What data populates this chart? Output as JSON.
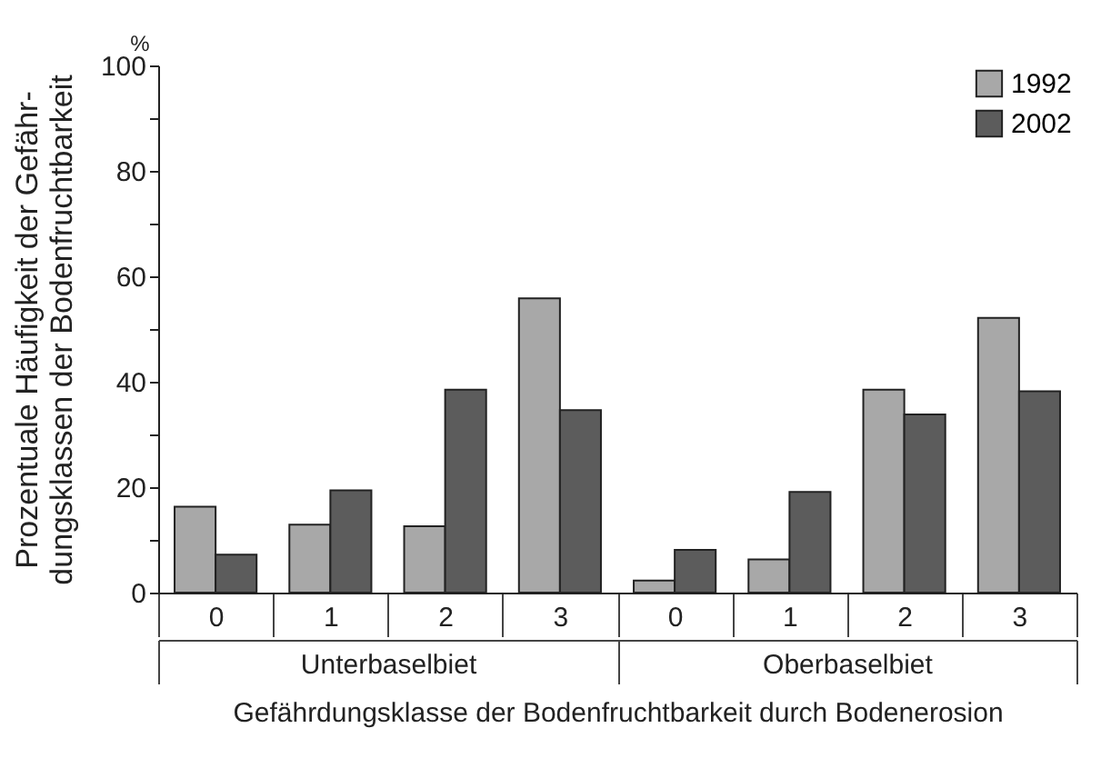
{
  "chart_data": {
    "type": "bar",
    "ylabel": "Prozentuale Häufigkeit der Gefähr-\ndungsklassen der Bodenfruchtbarkeit",
    "xlabel": "Gefährdungsklasse der Bodenfruchtbarkeit durch Bodenerosion",
    "categories": [
      "0",
      "1",
      "2",
      "3",
      "0",
      "1",
      "2",
      "3"
    ],
    "series": [
      {
        "name": "1992",
        "color": "#a8a8a8",
        "values": [
          16.3,
          12.9,
          12.6,
          55.8,
          2.3,
          6.3,
          38.5,
          52.1
        ]
      },
      {
        "name": "2002",
        "color": "#5c5c5c",
        "values": [
          7.2,
          19.4,
          38.5,
          34.6,
          8.1,
          19.1,
          33.8,
          38.2
        ]
      }
    ],
    "ylim": [
      0,
      100
    ],
    "yticks": [
      0,
      {
        "value": 10,
        "label": null
      },
      20,
      {
        "value": 30,
        "label": null
      },
      40,
      {
        "value": 50,
        "label": null
      },
      60,
      {
        "value": 70,
        "label": null
      },
      80,
      {
        "value": 90,
        "label": null
      },
      100
    ],
    "legend": "top right",
    "grid": false,
    "annotations": [
      "%",
      "Unterbaselbiet",
      "Oberbaselbiet"
    ]
  }
}
